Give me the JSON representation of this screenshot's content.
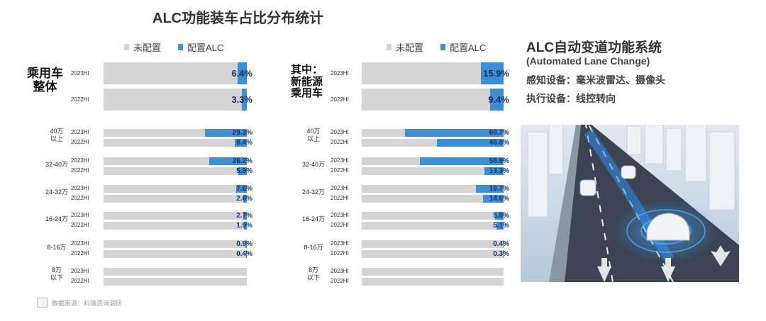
{
  "title": "ALC功能装车占比分布统计",
  "legend": {
    "not_configured": "未配置",
    "configured": "配置ALC"
  },
  "colors": {
    "not_configured": "#d4d4d4",
    "configured": "#3e8fd1",
    "value_text": "#1a2f6e"
  },
  "side_panel": {
    "title": "ALC自动变道功能系统",
    "subtitle": "(Automated Lane Change)",
    "sensing": "感知设备：毫米波雷达、摄像头",
    "execution": "执行设备：线控转向"
  },
  "source": "数据来源：科瑞咨询调研",
  "chart_data": [
    {
      "type": "bar",
      "header": "乘用车整体",
      "header_lines": [
        "乘用车",
        "整体"
      ],
      "summary": [
        {
          "year": "2023HI",
          "value": 6.4,
          "label": "6.4%"
        },
        {
          "year": "2022HI",
          "value": 3.3,
          "label": "3.3%"
        }
      ],
      "segments": [
        {
          "name": "40万以上",
          "name_lines": [
            "40万",
            "以上"
          ],
          "rows": [
            {
              "year": "2023HI",
              "value": 29.3,
              "label": "29.3%"
            },
            {
              "year": "2022HI",
              "value": 8.4,
              "label": "8.4%"
            }
          ]
        },
        {
          "name": "32-40万",
          "name_lines": [
            "32-40万"
          ],
          "rows": [
            {
              "year": "2023HI",
              "value": 26.2,
              "label": "26.2%"
            },
            {
              "year": "2022HI",
              "value": 5.9,
              "label": "5.9%"
            }
          ]
        },
        {
          "name": "24-32万",
          "name_lines": [
            "24-32万"
          ],
          "rows": [
            {
              "year": "2023HI",
              "value": 7.6,
              "label": "7.6%"
            },
            {
              "year": "2022HI",
              "value": 2.6,
              "label": "2.6%"
            }
          ]
        },
        {
          "name": "16-24万",
          "name_lines": [
            "16-24万"
          ],
          "rows": [
            {
              "year": "2023HI",
              "value": 2.7,
              "label": "2.7%"
            },
            {
              "year": "2022HI",
              "value": 1.9,
              "label": "1.9%"
            }
          ]
        },
        {
          "name": "8-16万",
          "name_lines": [
            "8-16万"
          ],
          "rows": [
            {
              "year": "2023HI",
              "value": 0.9,
              "label": "0.9%"
            },
            {
              "year": "2022HI",
              "value": 0.4,
              "label": "0.4%"
            }
          ]
        },
        {
          "name": "8万以下",
          "name_lines": [
            "8万",
            "以下"
          ],
          "rows": [
            {
              "year": "2023HI",
              "value": 0,
              "label": ""
            },
            {
              "year": "2022HI",
              "value": 0,
              "label": ""
            }
          ]
        }
      ],
      "ylim": [
        0,
        100
      ]
    },
    {
      "type": "bar",
      "header": "其中：新能源乘用车",
      "header_lines": [
        "其中：",
        "新能源",
        "乘用车"
      ],
      "summary": [
        {
          "year": "2023HI",
          "value": 15.9,
          "label": "15.9%"
        },
        {
          "year": "2022HI",
          "value": 9.4,
          "label": "9.4%"
        }
      ],
      "segments": [
        {
          "name": "40万以上",
          "name_lines": [
            "40万",
            "以上"
          ],
          "rows": [
            {
              "year": "2023HI",
              "value": 69.7,
              "label": "69.7%"
            },
            {
              "year": "2022HI",
              "value": 46.8,
              "label": "46.8%"
            }
          ]
        },
        {
          "name": "32-40万",
          "name_lines": [
            "32-40万"
          ],
          "rows": [
            {
              "year": "2023HI",
              "value": 58.9,
              "label": "58.9%"
            },
            {
              "year": "2022HI",
              "value": 13.3,
              "label": "13.3%"
            }
          ]
        },
        {
          "name": "24-32万",
          "name_lines": [
            "24-32万"
          ],
          "rows": [
            {
              "year": "2023HI",
              "value": 19.7,
              "label": "19.7%"
            },
            {
              "year": "2022HI",
              "value": 14.6,
              "label": "14.6%"
            }
          ]
        },
        {
          "name": "16-24万",
          "name_lines": [
            "16-24万"
          ],
          "rows": [
            {
              "year": "2023HI",
              "value": 5.8,
              "label": "5.8%"
            },
            {
              "year": "2022HI",
              "value": 5.1,
              "label": "5.1%"
            }
          ]
        },
        {
          "name": "8-16万",
          "name_lines": [
            "8-16万"
          ],
          "rows": [
            {
              "year": "2023HI",
              "value": 0.4,
              "label": "0.4%"
            },
            {
              "year": "2022HI",
              "value": 0.3,
              "label": "0.3%"
            }
          ]
        },
        {
          "name": "8万以下",
          "name_lines": [
            "8万",
            "以下"
          ],
          "rows": [
            {
              "year": "2023HI",
              "value": 0,
              "label": ""
            },
            {
              "year": "2022HI",
              "value": 0,
              "label": ""
            }
          ]
        }
      ],
      "ylim": [
        0,
        100
      ]
    }
  ]
}
